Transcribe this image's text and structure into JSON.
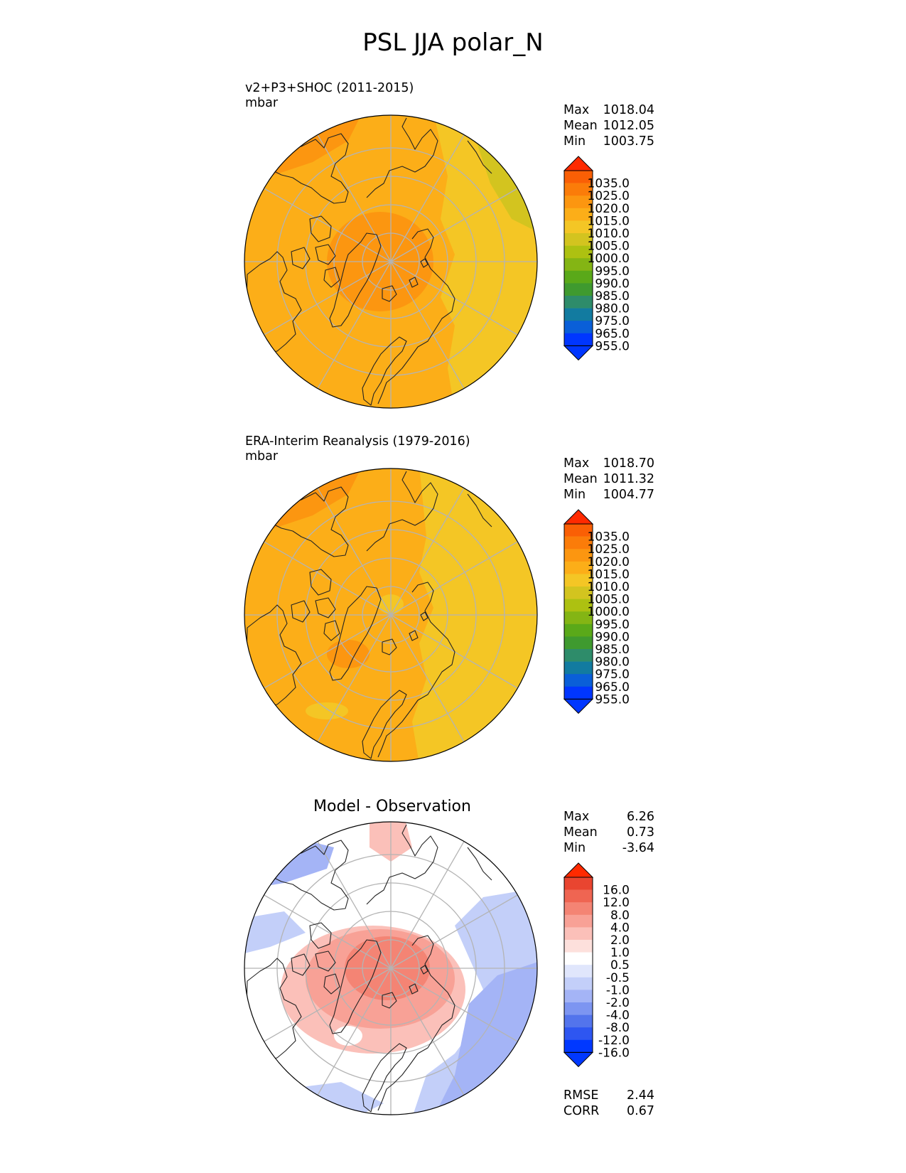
{
  "title": "PSL JJA polar_N",
  "colors": {
    "abs_levels": [
      "#0036ff",
      "#0a5fd8",
      "#127ba0",
      "#2e8c6a",
      "#3f9a2f",
      "#5aa919",
      "#84b514",
      "#adc111",
      "#d3c41f",
      "#f4c625",
      "#fcae18",
      "#fc9610",
      "#fb7c09",
      "#fa5f05",
      "#ff2a00"
    ],
    "diff_levels": [
      "#0038ff",
      "#2e56f1",
      "#5374ec",
      "#7d95f1",
      "#a4b4f6",
      "#c3cff9",
      "#e0e6fc",
      "#ffffff",
      "#fde0dc",
      "#fbc0b9",
      "#f8a196",
      "#f48474",
      "#ef6552",
      "#e94530",
      "#ff2a00"
    ],
    "coastline": "#222222",
    "graticule": "#b4b4b4"
  },
  "chart_data": [
    {
      "type": "heatmap",
      "name": "test",
      "title_line1": "v2+P3+SHOC (2011-2015)",
      "units": "mbar",
      "stats": [
        {
          "label": "Max",
          "value": "1018.04"
        },
        {
          "label": "Mean",
          "value": "1012.05"
        },
        {
          "label": "Min",
          "value": "1003.75"
        }
      ],
      "colorbar_ticks": [
        "1035.0",
        "1025.0",
        "1020.0",
        "1015.0",
        "1010.0",
        "1005.0",
        "1000.0",
        "995.0",
        "990.0",
        "985.0",
        "980.0",
        "975.0",
        "965.0",
        "955.0"
      ],
      "projection": "north polar stereographic"
    },
    {
      "type": "heatmap",
      "name": "reference",
      "title_line1": "ERA-Interim Reanalysis (1979-2016)",
      "units": "mbar",
      "stats": [
        {
          "label": "Max",
          "value": "1018.70"
        },
        {
          "label": "Mean",
          "value": "1011.32"
        },
        {
          "label": "Min",
          "value": "1004.77"
        }
      ],
      "colorbar_ticks": [
        "1035.0",
        "1025.0",
        "1020.0",
        "1015.0",
        "1010.0",
        "1005.0",
        "1000.0",
        "995.0",
        "990.0",
        "985.0",
        "980.0",
        "975.0",
        "965.0",
        "955.0"
      ],
      "projection": "north polar stereographic"
    },
    {
      "type": "heatmap",
      "name": "difference",
      "title": "Model - Observation",
      "stats": [
        {
          "label": "Max",
          "value": "6.26"
        },
        {
          "label": "Mean",
          "value": "0.73"
        },
        {
          "label": "Min",
          "value": "-3.64"
        }
      ],
      "colorbar_ticks": [
        "16.0",
        "12.0",
        "8.0",
        "4.0",
        "2.0",
        "1.0",
        "0.5",
        "-0.5",
        "-1.0",
        "-2.0",
        "-4.0",
        "-8.0",
        "-12.0",
        "-16.0"
      ],
      "metrics": [
        {
          "label": "RMSE",
          "value": "2.44"
        },
        {
          "label": "CORR",
          "value": "0.67"
        }
      ],
      "projection": "north polar stereographic"
    }
  ]
}
